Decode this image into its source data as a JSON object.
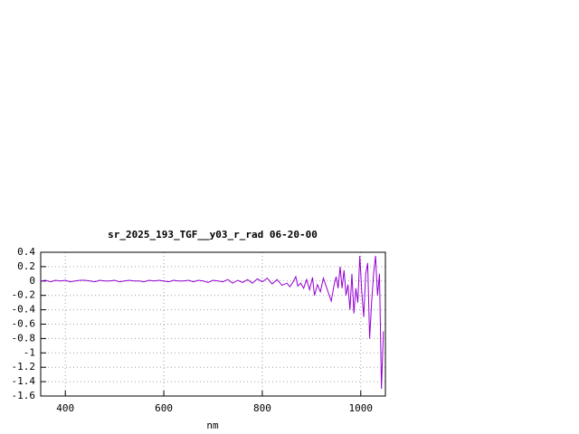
{
  "chart_data": {
    "type": "line",
    "title": "sr_2025_193_TGF__y03_r_rad 06-20-00",
    "x_label": "nm",
    "color": "#9400d3",
    "grid": true,
    "xlim": [
      350,
      1050
    ],
    "xticks": [
      400,
      600,
      800,
      1000
    ],
    "ylim": [
      -1.6,
      0.4
    ],
    "yticks": [
      0.4,
      0.2,
      0,
      -0.2,
      -0.4,
      -0.6,
      -0.8,
      -1,
      -1.2,
      -1.4,
      -1.6
    ],
    "x": [
      350,
      360,
      370,
      380,
      390,
      400,
      410,
      420,
      430,
      440,
      450,
      460,
      470,
      480,
      490,
      500,
      510,
      520,
      530,
      540,
      550,
      560,
      570,
      580,
      590,
      600,
      610,
      620,
      630,
      640,
      650,
      660,
      670,
      680,
      690,
      700,
      710,
      720,
      730,
      740,
      750,
      760,
      770,
      780,
      790,
      800,
      810,
      820,
      830,
      840,
      850,
      856,
      862,
      868,
      872,
      878,
      884,
      890,
      896,
      902,
      906,
      912,
      918,
      924,
      930,
      936,
      940,
      946,
      950,
      954,
      958,
      962,
      966,
      970,
      974,
      978,
      982,
      986,
      990,
      994,
      998,
      1002,
      1006,
      1010,
      1014,
      1018,
      1022,
      1026,
      1030,
      1034,
      1038,
      1042,
      1046
    ],
    "values": [
      0,
      0.01,
      -0.01,
      0.01,
      0,
      0.01,
      -0.01,
      0,
      0.01,
      0.01,
      0,
      -0.01,
      0.01,
      0,
      0,
      0.01,
      -0.01,
      0,
      0.01,
      0,
      0,
      -0.01,
      0.01,
      0,
      0.01,
      0,
      -0.01,
      0.01,
      0,
      0,
      0.01,
      -0.01,
      0.01,
      0,
      -0.02,
      0.01,
      0,
      -0.01,
      0.02,
      -0.03,
      0.01,
      -0.02,
      0.02,
      -0.03,
      0.03,
      -0.01,
      0.04,
      -0.04,
      0.02,
      -0.06,
      -0.03,
      -0.08,
      -0.02,
      0.06,
      -0.07,
      -0.03,
      -0.1,
      0.02,
      -0.12,
      0.05,
      -0.2,
      -0.05,
      -0.15,
      0.04,
      -0.08,
      -0.2,
      -0.28,
      -0.05,
      0.06,
      -0.1,
      0.2,
      -0.1,
      0.15,
      -0.2,
      -0.05,
      -0.4,
      0.1,
      -0.45,
      -0.1,
      -0.3,
      0.35,
      -0.15,
      -0.5,
      0.1,
      0.25,
      -0.8,
      -0.3,
      0.1,
      0.35,
      -0.2,
      0.1,
      -1.5,
      -0.7
    ]
  }
}
